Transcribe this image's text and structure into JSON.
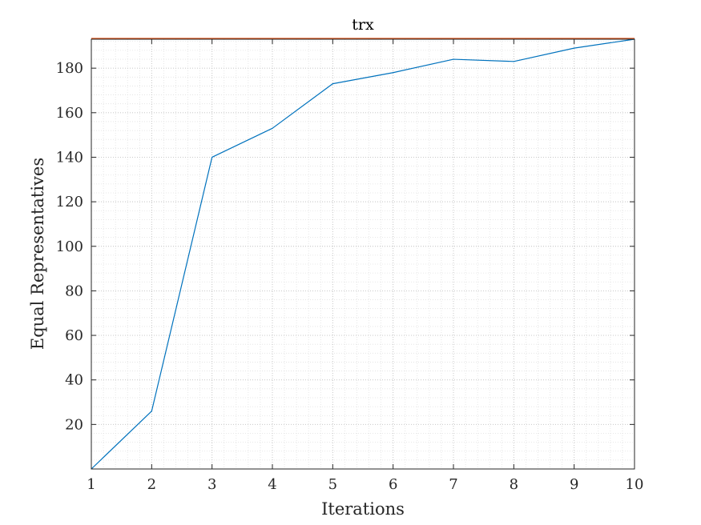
{
  "chart_data": {
    "type": "line",
    "title": "trx",
    "xlabel": "Iterations",
    "ylabel": "Equal Representatives",
    "x": [
      1,
      2,
      3,
      4,
      5,
      6,
      7,
      8,
      9,
      10
    ],
    "series": [
      {
        "values": [
          0,
          26,
          140,
          153,
          173,
          178,
          184,
          183,
          189,
          193
        ],
        "color": "#0072BD"
      }
    ],
    "reference_line": {
      "y": 193,
      "color": "#D95319"
    },
    "xlim": [
      1,
      10
    ],
    "ylim": [
      0,
      193
    ],
    "xticks": [
      1,
      2,
      3,
      4,
      5,
      6,
      7,
      8,
      9,
      10
    ],
    "yticks": [
      20,
      40,
      60,
      80,
      100,
      120,
      140,
      160,
      180
    ],
    "grid": "on (dotted, with minor grid)"
  }
}
